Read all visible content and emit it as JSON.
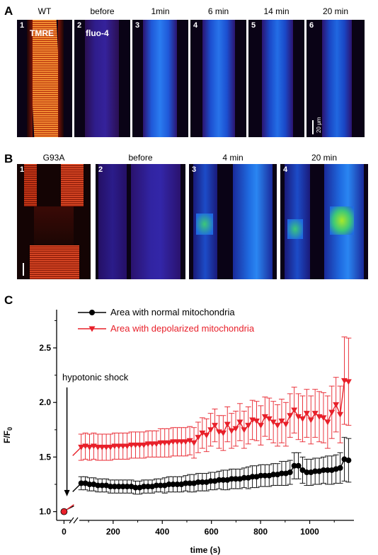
{
  "panelA": {
    "letter": "A",
    "labels": [
      "WT",
      "before",
      "1min",
      "6 min",
      "14 min",
      "20 min"
    ],
    "numbers": [
      "1",
      "2",
      "3",
      "4",
      "5",
      "6"
    ],
    "channels": [
      "TMRE",
      "fluo-4"
    ],
    "scale": "20 μm"
  },
  "panelB": {
    "letter": "B",
    "labels": [
      "G93A",
      "before",
      "4 min",
      "20 min"
    ],
    "numbers": [
      "1",
      "2",
      "3",
      "4"
    ]
  },
  "panelC": {
    "letter": "C"
  },
  "chart_data": {
    "type": "line",
    "xlabel": "time (s)",
    "ylabel_main": "F/F",
    "ylabel_sub": "0",
    "xlim": [
      -30,
      1180
    ],
    "ylim": [
      0.92,
      2.85
    ],
    "xticks": [
      0,
      200,
      400,
      600,
      800,
      1000
    ],
    "yticks": [
      1.0,
      1.5,
      2.0,
      2.5
    ],
    "legend_position": "top-left",
    "annotation": "hypotonic shock",
    "origin_point": {
      "x": 0,
      "y": 1.0
    },
    "series": [
      {
        "name": "Area with normal mitochondria",
        "color": "#000000",
        "marker": "circle",
        "x": [
          70,
          87,
          104,
          121,
          138,
          155,
          172,
          189,
          206,
          223,
          240,
          257,
          274,
          291,
          308,
          325,
          342,
          359,
          376,
          393,
          410,
          427,
          444,
          461,
          478,
          495,
          512,
          529,
          546,
          563,
          580,
          597,
          614,
          631,
          648,
          665,
          682,
          699,
          716,
          733,
          750,
          767,
          784,
          801,
          818,
          835,
          852,
          869,
          886,
          903,
          920,
          937,
          954,
          971,
          988,
          1005,
          1022,
          1039,
          1056,
          1073,
          1090,
          1107,
          1124,
          1141,
          1158
        ],
        "y": [
          1.26,
          1.26,
          1.25,
          1.25,
          1.24,
          1.24,
          1.24,
          1.23,
          1.23,
          1.23,
          1.23,
          1.23,
          1.23,
          1.22,
          1.22,
          1.23,
          1.23,
          1.23,
          1.24,
          1.24,
          1.24,
          1.25,
          1.25,
          1.25,
          1.25,
          1.26,
          1.26,
          1.26,
          1.27,
          1.27,
          1.27,
          1.28,
          1.28,
          1.29,
          1.29,
          1.29,
          1.3,
          1.3,
          1.3,
          1.31,
          1.31,
          1.32,
          1.32,
          1.33,
          1.33,
          1.33,
          1.34,
          1.34,
          1.35,
          1.35,
          1.36,
          1.42,
          1.42,
          1.38,
          1.36,
          1.36,
          1.37,
          1.37,
          1.38,
          1.38,
          1.38,
          1.39,
          1.4,
          1.48,
          1.47
        ],
        "err": [
          0.06,
          0.06,
          0.06,
          0.06,
          0.06,
          0.06,
          0.06,
          0.06,
          0.06,
          0.06,
          0.06,
          0.06,
          0.06,
          0.06,
          0.06,
          0.06,
          0.06,
          0.06,
          0.06,
          0.06,
          0.07,
          0.07,
          0.07,
          0.07,
          0.07,
          0.07,
          0.08,
          0.08,
          0.08,
          0.08,
          0.08,
          0.08,
          0.08,
          0.08,
          0.09,
          0.09,
          0.09,
          0.09,
          0.09,
          0.09,
          0.1,
          0.1,
          0.1,
          0.1,
          0.1,
          0.1,
          0.1,
          0.1,
          0.11,
          0.11,
          0.11,
          0.12,
          0.12,
          0.12,
          0.12,
          0.12,
          0.12,
          0.12,
          0.12,
          0.13,
          0.13,
          0.13,
          0.14,
          0.2,
          0.2
        ]
      },
      {
        "name": "Area with depolarized mitochondria",
        "color": "#e8202a",
        "marker": "triangle-down",
        "x": [
          70,
          87,
          104,
          121,
          138,
          155,
          172,
          189,
          206,
          223,
          240,
          257,
          274,
          291,
          308,
          325,
          342,
          359,
          376,
          393,
          410,
          427,
          444,
          461,
          478,
          495,
          512,
          529,
          546,
          563,
          580,
          597,
          614,
          631,
          648,
          665,
          682,
          699,
          716,
          733,
          750,
          767,
          784,
          801,
          818,
          835,
          852,
          869,
          886,
          903,
          920,
          937,
          954,
          971,
          988,
          1005,
          1022,
          1039,
          1056,
          1073,
          1090,
          1107,
          1124,
          1141,
          1158
        ],
        "y": [
          1.59,
          1.6,
          1.59,
          1.6,
          1.59,
          1.59,
          1.59,
          1.59,
          1.6,
          1.6,
          1.6,
          1.6,
          1.61,
          1.61,
          1.61,
          1.61,
          1.62,
          1.62,
          1.62,
          1.63,
          1.63,
          1.63,
          1.64,
          1.64,
          1.64,
          1.64,
          1.65,
          1.63,
          1.68,
          1.72,
          1.7,
          1.75,
          1.79,
          1.73,
          1.72,
          1.8,
          1.74,
          1.76,
          1.82,
          1.75,
          1.79,
          1.84,
          1.83,
          1.79,
          1.87,
          1.85,
          1.82,
          1.79,
          1.83,
          1.8,
          1.88,
          1.93,
          1.87,
          1.85,
          1.9,
          1.84,
          1.9,
          1.87,
          1.86,
          1.82,
          1.91,
          1.98,
          1.89,
          2.2,
          2.19
        ],
        "err": [
          0.12,
          0.12,
          0.12,
          0.12,
          0.12,
          0.12,
          0.12,
          0.12,
          0.12,
          0.12,
          0.12,
          0.12,
          0.12,
          0.12,
          0.12,
          0.12,
          0.12,
          0.12,
          0.12,
          0.13,
          0.13,
          0.13,
          0.13,
          0.13,
          0.13,
          0.13,
          0.13,
          0.14,
          0.14,
          0.14,
          0.15,
          0.15,
          0.15,
          0.15,
          0.16,
          0.16,
          0.16,
          0.16,
          0.17,
          0.17,
          0.17,
          0.18,
          0.18,
          0.18,
          0.18,
          0.19,
          0.19,
          0.19,
          0.2,
          0.2,
          0.2,
          0.21,
          0.21,
          0.21,
          0.22,
          0.22,
          0.22,
          0.23,
          0.23,
          0.24,
          0.24,
          0.25,
          0.26,
          0.4,
          0.4
        ]
      }
    ]
  }
}
